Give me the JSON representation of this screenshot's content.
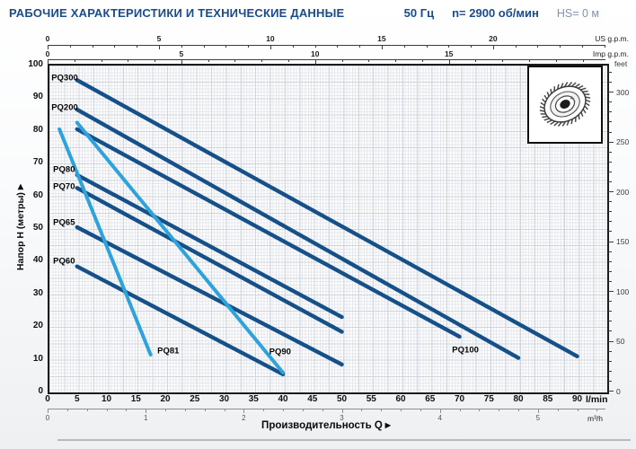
{
  "header": {
    "title": "РАБОЧИЕ ХАРАКТЕРИСТИКИ И ТЕХНИЧЕСКИЕ ДАННЫЕ",
    "frequency": "50 Гц",
    "speed": "n= 2900 об/мин",
    "suction": "HS= 0 м"
  },
  "colors": {
    "title_navy": "#1a4b8c",
    "suction_text": "#7f95b2",
    "dark_curve": "#165089",
    "light_curve": "#2ea3db"
  },
  "icons": {
    "arrow_right": "▶"
  },
  "chart_data": {
    "type": "line",
    "xlabel": "Производительность Q",
    "ylabel": "Напор H (метры)",
    "grid": true,
    "x_range_lmin": [
      0,
      94.8
    ],
    "y_range_m": [
      0,
      100
    ],
    "axes": {
      "us_gpm": {
        "unit_label": "US g.p.m.",
        "majors": [
          0,
          5,
          10,
          15,
          20
        ],
        "minor_step": 1,
        "to_lmin": 3.785
      },
      "imp_gpm": {
        "unit_label": "Imp g.p.m.",
        "majors": [
          0,
          5,
          10,
          15
        ],
        "minor_step": 1,
        "to_lmin": 4.546
      },
      "lmin": {
        "unit_label": "l/min",
        "majors": [
          0,
          5,
          10,
          15,
          20,
          25,
          30,
          35,
          40,
          45,
          50,
          55,
          60,
          65,
          70,
          75,
          80,
          85,
          90
        ]
      },
      "m3h": {
        "unit_label": "m³/h",
        "majors": [
          0,
          1,
          2,
          3,
          4,
          5
        ],
        "minor_step": 0.2,
        "to_lmin": 16.667
      },
      "head_m": {
        "majors": [
          0,
          10,
          20,
          30,
          40,
          50,
          60,
          70,
          80,
          90,
          100
        ]
      },
      "feet": {
        "unit_label": "feet",
        "majors": [
          0,
          50,
          100,
          150,
          200,
          250,
          300
        ],
        "minor_step": 10,
        "to_m": 0.3048
      }
    },
    "series": [
      {
        "name": "PQ300",
        "style": "dark",
        "points": [
          [
            5,
            95
          ],
          [
            90,
            10.5
          ]
        ],
        "label_at": [
          2.9,
          95.5
        ]
      },
      {
        "name": "PQ200",
        "style": "dark",
        "points": [
          [
            5,
            86
          ],
          [
            80,
            10
          ]
        ],
        "label_at": [
          2.9,
          86.5
        ]
      },
      {
        "name": "PQ100",
        "style": "dark",
        "points": [
          [
            5,
            80
          ],
          [
            70,
            16.5
          ]
        ],
        "label_at": [
          71,
          12.5
        ]
      },
      {
        "name": "PQ80",
        "style": "dark",
        "points": [
          [
            5,
            66
          ],
          [
            50,
            22.5
          ]
        ],
        "label_at": [
          2.8,
          67.5
        ]
      },
      {
        "name": "PQ70",
        "style": "dark",
        "points": [
          [
            5,
            62
          ],
          [
            50,
            18
          ]
        ],
        "label_at": [
          2.8,
          62.5
        ]
      },
      {
        "name": "PQ65",
        "style": "dark",
        "points": [
          [
            5,
            50
          ],
          [
            50,
            8
          ]
        ],
        "label_at": [
          2.8,
          51.5
        ]
      },
      {
        "name": "PQ60",
        "style": "dark",
        "points": [
          [
            5,
            38
          ],
          [
            40,
            5
          ]
        ],
        "label_at": [
          2.8,
          39.5
        ]
      },
      {
        "name": "PQ90",
        "style": "light",
        "points": [
          [
            5,
            82
          ],
          [
            40,
            5.5
          ]
        ],
        "label_at": [
          39.5,
          11.8
        ]
      },
      {
        "name": "PQ81",
        "style": "light",
        "points": [
          [
            2,
            80
          ],
          [
            17.5,
            11
          ]
        ],
        "label_at": [
          20.5,
          12
        ]
      }
    ]
  }
}
